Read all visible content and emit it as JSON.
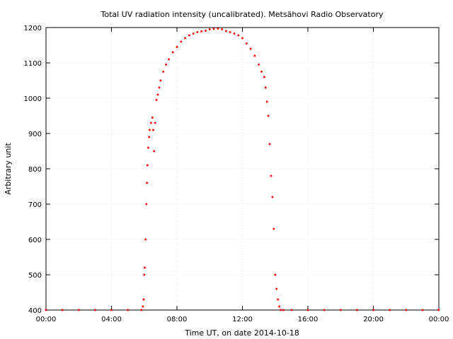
{
  "chart_data": {
    "type": "scatter",
    "title": "Total UV radiation intensity (uncalibrated). Metsähovi Radio Observatory",
    "xlabel": "Time UT, on date 2014-10-18",
    "ylabel": "Arbitrary unit",
    "xlim": [
      "00:00",
      "24:00"
    ],
    "ylim": [
      400,
      1200
    ],
    "x_ticks": [
      "00:00",
      "04:00",
      "08:00",
      "12:00",
      "16:00",
      "20:00",
      "00:00"
    ],
    "y_ticks": [
      "400",
      "500",
      "600",
      "700",
      "800",
      "900",
      "1000",
      "1100",
      "1200"
    ],
    "grid": true,
    "legend": "none",
    "marker_color": "#ff0000",
    "series": [
      {
        "x": [
          "00:00",
          "01:00",
          "02:00",
          "03:00",
          "04:00",
          "05:00",
          "05:50",
          "05:55",
          "05:58",
          "06:00",
          "06:02",
          "06:05",
          "06:08",
          "06:10",
          "06:12",
          "06:15",
          "06:18",
          "06:20",
          "06:25",
          "06:30",
          "06:33",
          "06:36",
          "06:40",
          "06:45",
          "06:50",
          "06:55",
          "07:00",
          "07:10",
          "07:20",
          "07:30",
          "07:45",
          "08:00",
          "08:15",
          "08:30",
          "08:45",
          "09:00",
          "09:15",
          "09:30",
          "09:45",
          "10:00",
          "10:15",
          "10:30",
          "10:45",
          "11:00",
          "11:15",
          "11:30",
          "11:45",
          "12:00",
          "12:15",
          "12:30",
          "12:45",
          "13:00",
          "13:10",
          "13:20",
          "13:25",
          "13:30",
          "13:35",
          "13:40",
          "13:45",
          "13:50",
          "13:55",
          "14:00",
          "14:05",
          "14:10",
          "14:15",
          "14:20",
          "14:30",
          "15:00",
          "16:00",
          "17:00",
          "18:00",
          "19:00",
          "20:00",
          "21:00",
          "22:00",
          "23:00",
          "23:59"
        ],
        "y": [
          400,
          400,
          400,
          400,
          400,
          400,
          400,
          410,
          430,
          500,
          520,
          600,
          700,
          760,
          810,
          860,
          890,
          910,
          930,
          945,
          910,
          850,
          930,
          995,
          1010,
          1030,
          1050,
          1075,
          1095,
          1110,
          1130,
          1145,
          1160,
          1170,
          1178,
          1183,
          1187,
          1189,
          1191,
          1195,
          1196,
          1197,
          1195,
          1190,
          1187,
          1183,
          1178,
          1170,
          1155,
          1140,
          1120,
          1095,
          1075,
          1060,
          1030,
          990,
          950,
          870,
          780,
          720,
          630,
          500,
          460,
          430,
          410,
          400,
          400,
          400,
          400,
          400,
          400,
          400,
          400,
          400,
          400,
          400,
          400
        ]
      }
    ]
  }
}
